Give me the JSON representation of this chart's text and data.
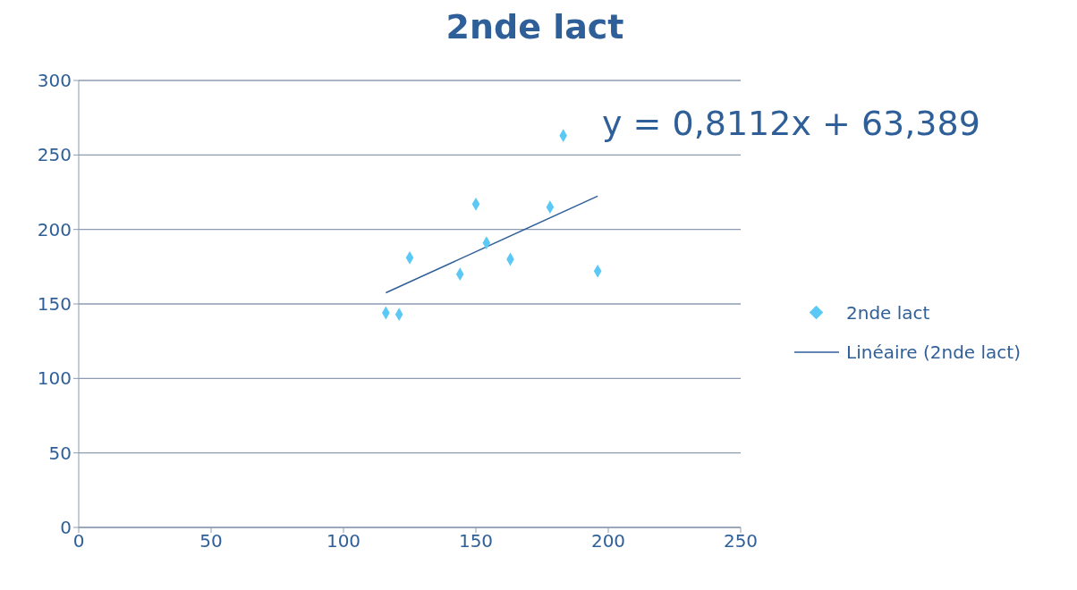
{
  "chart_data": {
    "type": "scatter",
    "title": "2nde lact",
    "series": [
      {
        "name": "2nde lact",
        "color": "#5bc8f5",
        "x": [
          116,
          121,
          125,
          144,
          150,
          154,
          163,
          178,
          183,
          196
        ],
        "values": [
          144,
          143,
          181,
          170,
          217,
          191,
          180,
          215,
          263,
          172
        ],
        "marker": "diamond"
      },
      {
        "name": "Linéaire (2nde lact)",
        "type": "line",
        "color": "#2f5f98",
        "x": [
          116,
          196
        ],
        "values": [
          157.5,
          222.4
        ],
        "marker": "none"
      }
    ],
    "annotations": [
      "y = 0,8112x + 63,389"
    ],
    "xlim": [
      0,
      250
    ],
    "xticks": [
      0,
      50,
      100,
      150,
      200,
      250
    ],
    "ylim": [
      0,
      300
    ],
    "yticks": [
      0,
      50,
      100,
      150,
      200,
      250,
      300
    ],
    "grid": "y",
    "legend": "right",
    "line_style": "solid"
  }
}
